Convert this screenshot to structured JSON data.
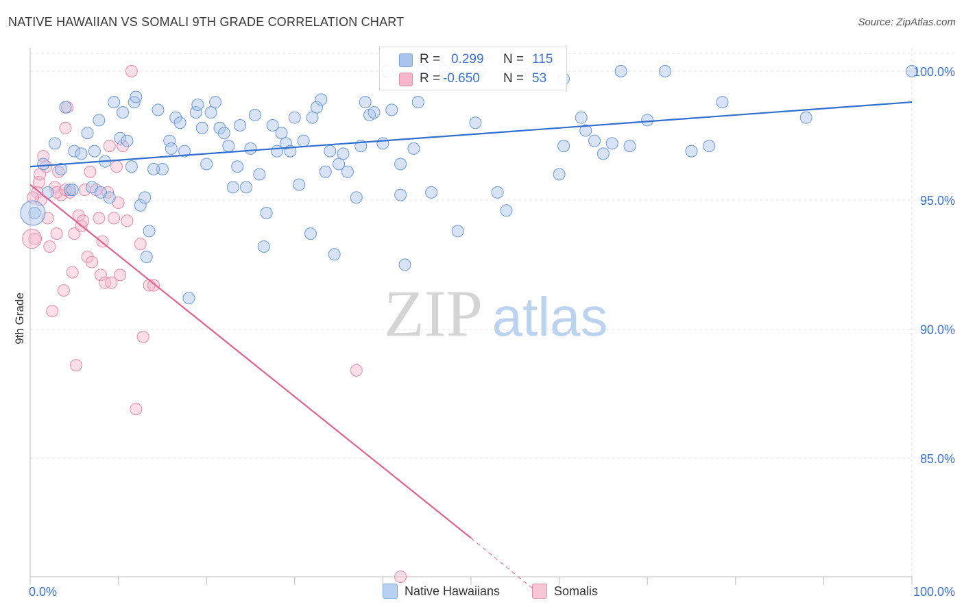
{
  "header": {
    "title": "NATIVE HAWAIIAN VS SOMALI 9TH GRADE CORRELATION CHART",
    "source": "Source: ZipAtlas.com"
  },
  "watermark": {
    "zip": "ZIP",
    "atlas": "atlas"
  },
  "stats": {
    "rows": [
      {
        "r_label": "R =",
        "r_value": "0.299",
        "n_label": "N =",
        "n_value": "115",
        "color": "#a8c4ea"
      },
      {
        "r_label": "R =",
        "r_value": "-0.650",
        "n_label": "N =",
        "n_value": "53",
        "color": "#f5b8cb"
      }
    ]
  },
  "legend": [
    {
      "label": "Native Hawaiians",
      "color": "#b9d0f0"
    },
    {
      "label": "Somalis",
      "color": "#f8c6d5"
    }
  ],
  "colors": {
    "blue_fill": "#a8c4ea",
    "blue_stroke": "#6b97d6",
    "blue_line": "#2f6fcf",
    "pink_fill": "#f5b8cb",
    "pink_stroke": "#e58aa8",
    "pink_line": "#e0628e",
    "tick_label": "#3b71c9",
    "grid": "#e2e2e2"
  },
  "chart_data": {
    "type": "scatter",
    "title": "NATIVE HAWAIIAN VS SOMALI 9TH GRADE CORRELATION CHART",
    "xlabel": "",
    "ylabel": "9th Grade",
    "xlim": [
      0,
      100
    ],
    "ylim": [
      80.4,
      100.9
    ],
    "x_tick_labels": [
      {
        "value": 0,
        "label": "0.0%"
      },
      {
        "value": 100,
        "label": "100.0%"
      }
    ],
    "y_tick_labels": [
      {
        "value": 100,
        "label": "100.0%"
      },
      {
        "value": 95,
        "label": "95.0%"
      },
      {
        "value": 90,
        "label": "90.0%"
      },
      {
        "value": 85,
        "label": "85.0%"
      }
    ],
    "grid": true,
    "legend_position": "bottom",
    "series": [
      {
        "name": "Native Hawaiians",
        "trend": {
          "x0": 0,
          "y0": 96.3,
          "x1": 100,
          "y1": 98.8
        },
        "points": [
          [
            1.5,
            96.4
          ],
          [
            2.8,
            97.2
          ],
          [
            3.5,
            96.2
          ],
          [
            4.5,
            95.4
          ],
          [
            4.0,
            98.6
          ],
          [
            5.0,
            96.9
          ],
          [
            4.8,
            95.4
          ],
          [
            5.8,
            96.8
          ],
          [
            6.5,
            97.6
          ],
          [
            7.3,
            96.9
          ],
          [
            7.0,
            95.5
          ],
          [
            7.8,
            98.1
          ],
          [
            8.5,
            96.5
          ],
          [
            9.0,
            95.1
          ],
          [
            9.5,
            98.8
          ],
          [
            10.2,
            97.4
          ],
          [
            10.5,
            98.4
          ],
          [
            11.0,
            97.3
          ],
          [
            11.5,
            96.3
          ],
          [
            11.8,
            98.8
          ],
          [
            12.0,
            99.0
          ],
          [
            12.5,
            94.8
          ],
          [
            13.0,
            95.1
          ],
          [
            13.5,
            93.8
          ],
          [
            13.2,
            92.8
          ],
          [
            14.5,
            98.5
          ],
          [
            15.0,
            96.2
          ],
          [
            15.8,
            97.3
          ],
          [
            16.0,
            97.0
          ],
          [
            16.5,
            98.2
          ],
          [
            17.0,
            98.0
          ],
          [
            17.5,
            96.9
          ],
          [
            18.0,
            91.2
          ],
          [
            18.8,
            98.4
          ],
          [
            19.0,
            98.7
          ],
          [
            19.5,
            97.8
          ],
          [
            20.0,
            96.4
          ],
          [
            20.5,
            98.4
          ],
          [
            21.0,
            98.8
          ],
          [
            21.5,
            97.8
          ],
          [
            22.0,
            97.6
          ],
          [
            23.0,
            95.5
          ],
          [
            23.5,
            96.3
          ],
          [
            23.8,
            97.9
          ],
          [
            24.5,
            95.5
          ],
          [
            25.0,
            97.0
          ],
          [
            25.5,
            98.3
          ],
          [
            26.0,
            96.0
          ],
          [
            26.5,
            93.2
          ],
          [
            26.8,
            94.5
          ],
          [
            27.5,
            97.9
          ],
          [
            28.0,
            96.9
          ],
          [
            28.5,
            97.6
          ],
          [
            29.0,
            97.2
          ],
          [
            29.5,
            96.9
          ],
          [
            30.0,
            98.2
          ],
          [
            30.5,
            95.6
          ],
          [
            31.0,
            97.3
          ],
          [
            32.0,
            98.2
          ],
          [
            31.8,
            93.7
          ],
          [
            32.5,
            98.6
          ],
          [
            33.0,
            98.9
          ],
          [
            33.5,
            96.1
          ],
          [
            34.0,
            96.9
          ],
          [
            34.5,
            92.9
          ],
          [
            35.0,
            96.4
          ],
          [
            35.5,
            96.8
          ],
          [
            36.0,
            96.1
          ],
          [
            37.0,
            95.1
          ],
          [
            37.5,
            97.1
          ],
          [
            38.0,
            98.8
          ],
          [
            38.5,
            98.3
          ],
          [
            39.0,
            98.4
          ],
          [
            40.0,
            97.2
          ],
          [
            40.5,
            100.0
          ],
          [
            41.0,
            98.5
          ],
          [
            42.0,
            96.4
          ],
          [
            42.0,
            95.2
          ],
          [
            42.5,
            92.5
          ],
          [
            43.5,
            97.0
          ],
          [
            44.0,
            98.8
          ],
          [
            44.5,
            100.0
          ],
          [
            45.5,
            95.3
          ],
          [
            47.0,
            100.0
          ],
          [
            48.5,
            93.8
          ],
          [
            50.0,
            99.7
          ],
          [
            50.5,
            98.0
          ],
          [
            51.0,
            100.0
          ],
          [
            53.0,
            95.3
          ],
          [
            54.0,
            94.6
          ],
          [
            56.0,
            99.9
          ],
          [
            57.0,
            100.0
          ],
          [
            58.0,
            100.0
          ],
          [
            60.0,
            96.0
          ],
          [
            60.5,
            97.1
          ],
          [
            62.5,
            98.2
          ],
          [
            63.0,
            97.7
          ],
          [
            64.0,
            97.3
          ],
          [
            65.0,
            96.8
          ],
          [
            66.0,
            97.2
          ],
          [
            67.0,
            100.0
          ],
          [
            68.0,
            97.1
          ],
          [
            70.0,
            98.1
          ],
          [
            72.0,
            100.0
          ],
          [
            75.0,
            96.9
          ],
          [
            77.0,
            97.1
          ],
          [
            78.5,
            98.8
          ],
          [
            88.0,
            98.2
          ],
          [
            100.0,
            100.0
          ],
          [
            0.5,
            94.5
          ],
          [
            2.0,
            95.3
          ],
          [
            8.0,
            95.3
          ],
          [
            14.0,
            96.2
          ],
          [
            22.5,
            97.1
          ],
          [
            60.5,
            99.7
          ]
        ]
      },
      {
        "name": "Somalis",
        "trend": {
          "x0": 0,
          "y0": 95.6,
          "x1": 50,
          "y1": 81.9,
          "dash_to_x": 57.5,
          "dash_to_y": 79.8
        },
        "points": [
          [
            0.5,
            93.5
          ],
          [
            0.8,
            95.3
          ],
          [
            1.0,
            95.7
          ],
          [
            1.2,
            95.0
          ],
          [
            1.5,
            96.7
          ],
          [
            1.8,
            96.3
          ],
          [
            2.0,
            94.3
          ],
          [
            2.2,
            93.2
          ],
          [
            2.5,
            90.7
          ],
          [
            2.8,
            95.5
          ],
          [
            3.0,
            93.7
          ],
          [
            3.2,
            96.1
          ],
          [
            3.5,
            95.2
          ],
          [
            3.8,
            91.5
          ],
          [
            4.0,
            97.8
          ],
          [
            4.2,
            98.6
          ],
          [
            4.5,
            95.3
          ],
          [
            4.8,
            92.2
          ],
          [
            5.0,
            93.7
          ],
          [
            5.2,
            88.6
          ],
          [
            5.5,
            94.4
          ],
          [
            5.8,
            94.0
          ],
          [
            6.0,
            94.2
          ],
          [
            6.2,
            95.4
          ],
          [
            6.5,
            92.8
          ],
          [
            6.8,
            96.1
          ],
          [
            7.0,
            92.6
          ],
          [
            7.5,
            95.4
          ],
          [
            7.8,
            94.3
          ],
          [
            8.0,
            92.1
          ],
          [
            8.2,
            93.4
          ],
          [
            8.5,
            91.8
          ],
          [
            8.8,
            95.3
          ],
          [
            9.0,
            97.1
          ],
          [
            9.2,
            91.8
          ],
          [
            9.5,
            94.3
          ],
          [
            9.8,
            96.3
          ],
          [
            10.0,
            94.9
          ],
          [
            10.2,
            92.1
          ],
          [
            10.5,
            97.1
          ],
          [
            11.0,
            94.2
          ],
          [
            11.5,
            100.0
          ],
          [
            12.0,
            86.9
          ],
          [
            12.5,
            93.3
          ],
          [
            12.8,
            89.7
          ],
          [
            13.5,
            91.7
          ],
          [
            14.0,
            91.7
          ],
          [
            0.3,
            95.1
          ],
          [
            1.1,
            96.0
          ],
          [
            3.0,
            95.3
          ],
          [
            4.0,
            95.4
          ],
          [
            42.0,
            80.4
          ],
          [
            37.0,
            88.4
          ]
        ]
      }
    ]
  }
}
